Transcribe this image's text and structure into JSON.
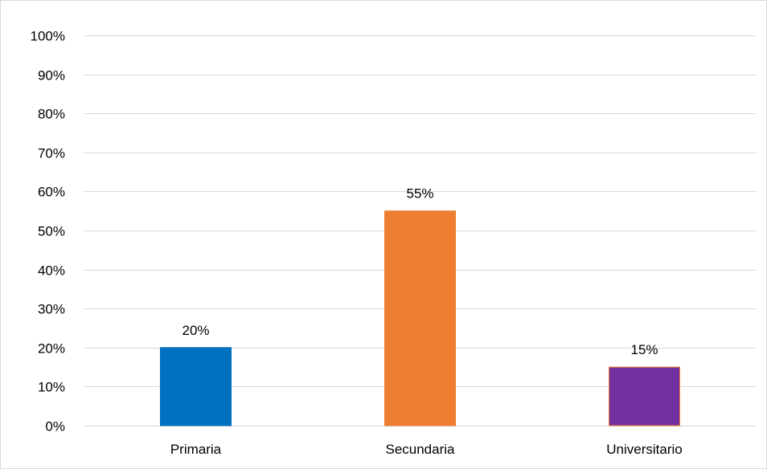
{
  "chart_data": {
    "type": "bar",
    "title": "",
    "xlabel": "",
    "ylabel": "",
    "categories": [
      "Primaria",
      "Secundaria",
      "Universitario"
    ],
    "values": [
      20,
      55,
      15
    ],
    "data_labels": [
      "20%",
      "55%",
      "15%"
    ],
    "colors": [
      "#0070C0",
      "#ED7D31",
      "#7030A0"
    ],
    "bar_outline_colors": [
      "#0070C0",
      "#ED7D31",
      "#ED7D31"
    ],
    "ylim": [
      0,
      100
    ],
    "yticks": [
      0,
      10,
      20,
      30,
      40,
      50,
      60,
      70,
      80,
      90,
      100
    ],
    "ytick_labels": [
      "0%",
      "10%",
      "20%",
      "30%",
      "40%",
      "50%",
      "60%",
      "70%",
      "80%",
      "90%",
      "100%"
    ],
    "grid": true,
    "gridline_color": "#d9d9d9",
    "legend": "none"
  }
}
